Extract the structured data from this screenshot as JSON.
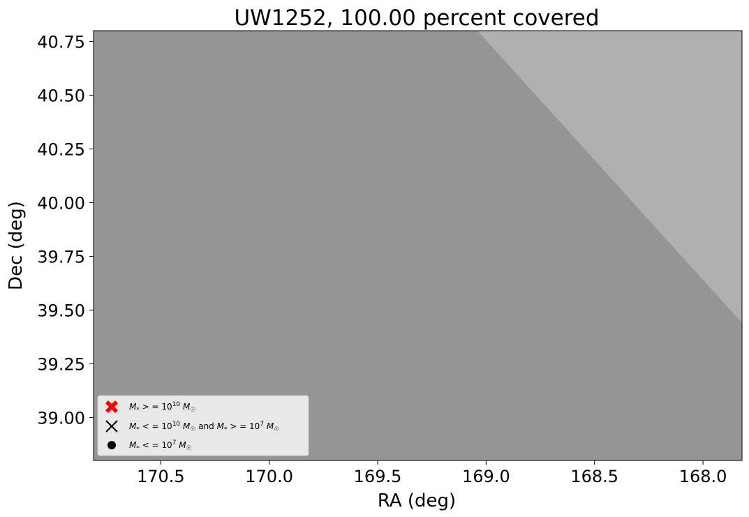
{
  "chart_data": {
    "type": "area",
    "title": "UW1252, 100.00 percent covered",
    "xlabel": "RA (deg)",
    "ylabel": "Dec (deg)",
    "x_inverted": true,
    "xlim": [
      170.81,
      167.82
    ],
    "ylim": [
      38.8,
      40.8
    ],
    "x_ticks": [
      170.5,
      170.0,
      169.5,
      169.0,
      168.5,
      168.0
    ],
    "x_tick_labels": [
      "170.5",
      "170.0",
      "169.5",
      "169.0",
      "168.5",
      "168.0"
    ],
    "y_ticks": [
      39.0,
      39.25,
      39.5,
      39.75,
      40.0,
      40.25,
      40.5,
      40.75
    ],
    "y_tick_labels": [
      "39.00",
      "39.25",
      "39.50",
      "39.75",
      "40.00",
      "40.25",
      "40.50",
      "40.75"
    ],
    "background_color": "#b0b0b0",
    "coverage_color": "#959595",
    "coverage_region": [
      [
        170.81,
        38.8
      ],
      [
        170.81,
        40.8
      ],
      [
        169.04,
        40.8
      ],
      [
        167.82,
        39.44
      ],
      [
        167.82,
        38.8
      ]
    ],
    "legend_position": "lower-left",
    "legend": [
      {
        "marker": "x-filled",
        "color": "#ff0000",
        "label": "M* >= 10^10 M_sun"
      },
      {
        "marker": "x",
        "color": "#000000",
        "label": "M* <= 10^10 M_sun and M* >= 10^7 M_sun"
      },
      {
        "marker": "circle",
        "color": "#000000",
        "label": "M* <= 10^7 M_sun"
      }
    ],
    "points": []
  }
}
